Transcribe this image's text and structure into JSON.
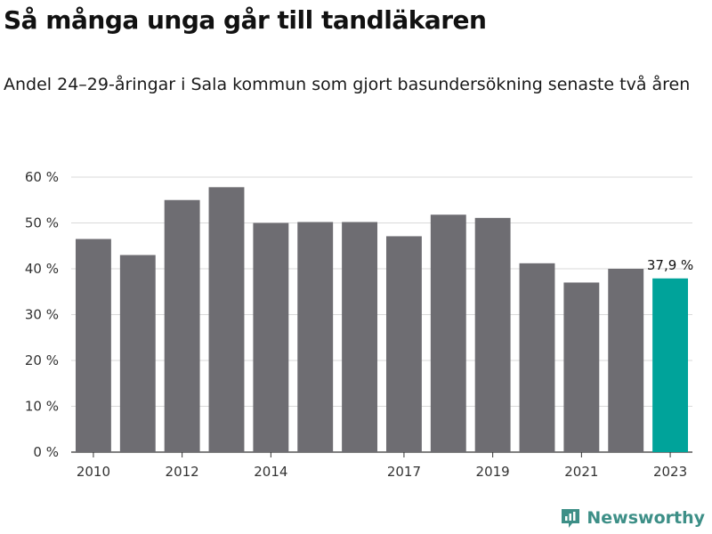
{
  "title": "Så många unga går till tandläkaren",
  "subtitle": "Andel 24–29-åringar i Sala kommun som gjort basundersökning senaste två åren",
  "brand": "Newsworthy",
  "chart_data": {
    "type": "bar",
    "categories": [
      "2010",
      "2011",
      "2012",
      "2013",
      "2014",
      "2015",
      "2016",
      "2017",
      "2018",
      "2019",
      "2020",
      "2021",
      "2022",
      "2023"
    ],
    "values": [
      46.5,
      43.0,
      55.0,
      57.8,
      50.0,
      50.2,
      50.2,
      47.1,
      51.8,
      51.1,
      41.2,
      37.0,
      40.0,
      37.9
    ],
    "x_tick_labels": [
      "2010",
      "",
      "2012",
      "",
      "2014",
      "",
      "",
      "2017",
      "",
      "2019",
      "",
      "2021",
      "",
      "2023"
    ],
    "y_ticks": [
      0,
      10,
      20,
      30,
      40,
      50,
      60
    ],
    "y_tick_labels": [
      "0 %",
      "10 %",
      "20 %",
      "30 %",
      "40 %",
      "50 %",
      "60 %"
    ],
    "ylim": [
      0,
      60
    ],
    "highlight_index": 13,
    "highlight_label": "37,9 %",
    "grid": true,
    "colors": {
      "bar": "#6e6d72",
      "highlight": "#00a39a",
      "grid": "#d9d9d9",
      "axis": "#333333"
    }
  }
}
